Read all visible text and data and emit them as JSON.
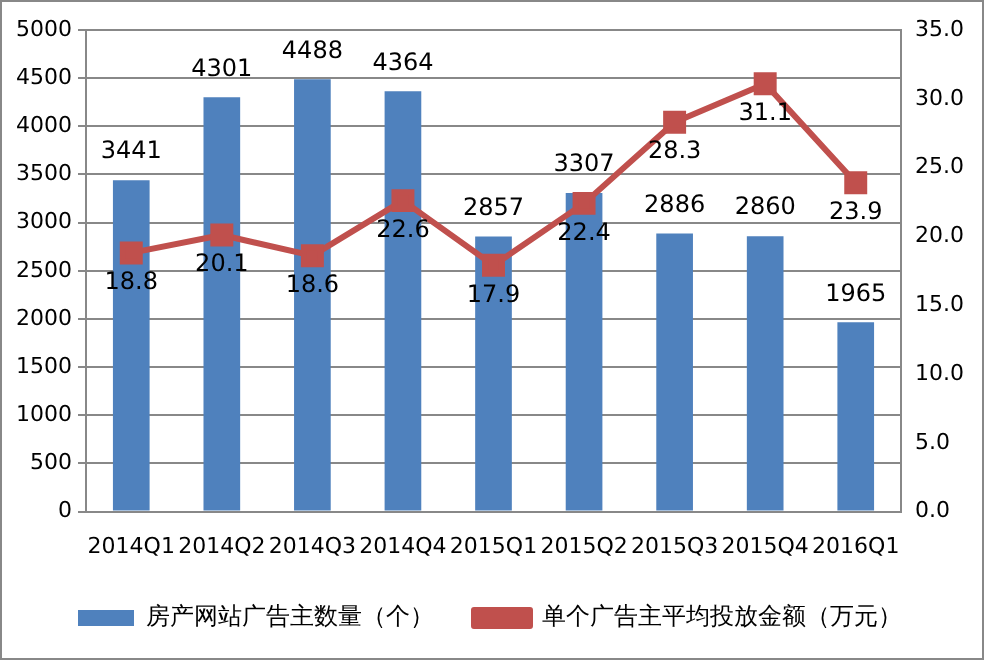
{
  "chart_data": {
    "type": "bar",
    "categories": [
      "2014Q1",
      "2014Q2",
      "2014Q3",
      "2014Q4",
      "2015Q1",
      "2015Q2",
      "2015Q3",
      "2015Q4",
      "2016Q1"
    ],
    "series": [
      {
        "name": "房产网站广告主数量（个）",
        "color": "#4f81bd",
        "type": "bar",
        "values": [
          3441,
          4301,
          4488,
          4364,
          2857,
          3307,
          2886,
          2860,
          1965
        ]
      },
      {
        "name": "单个广告主平均投放金额（万元）",
        "color": "#c0504d",
        "type": "line",
        "axis": "y2",
        "values": [
          18.8,
          20.1,
          18.6,
          22.6,
          17.9,
          22.4,
          28.3,
          31.1,
          23.9
        ]
      }
    ],
    "ylim": [
      0,
      5000
    ],
    "yticks": [
      0,
      500,
      1000,
      1500,
      2000,
      2500,
      3000,
      3500,
      4000,
      4500,
      5000
    ],
    "y2lim": [
      0,
      35
    ],
    "y2ticks": [
      {
        "value": 0,
        "label": "0.0"
      },
      {
        "value": 5,
        "label": "5.0"
      },
      {
        "value": 10,
        "label": "10.0"
      },
      {
        "value": 15,
        "label": "15.0"
      },
      {
        "value": 20,
        "label": "20.0"
      },
      {
        "value": 25,
        "label": "25.0"
      },
      {
        "value": 30,
        "label": "30.0"
      },
      {
        "value": 35,
        "label": "35.0"
      }
    ],
    "grid": "y",
    "legend": "bottom",
    "marker": "square",
    "line_style": "solid",
    "data_labels": true
  }
}
